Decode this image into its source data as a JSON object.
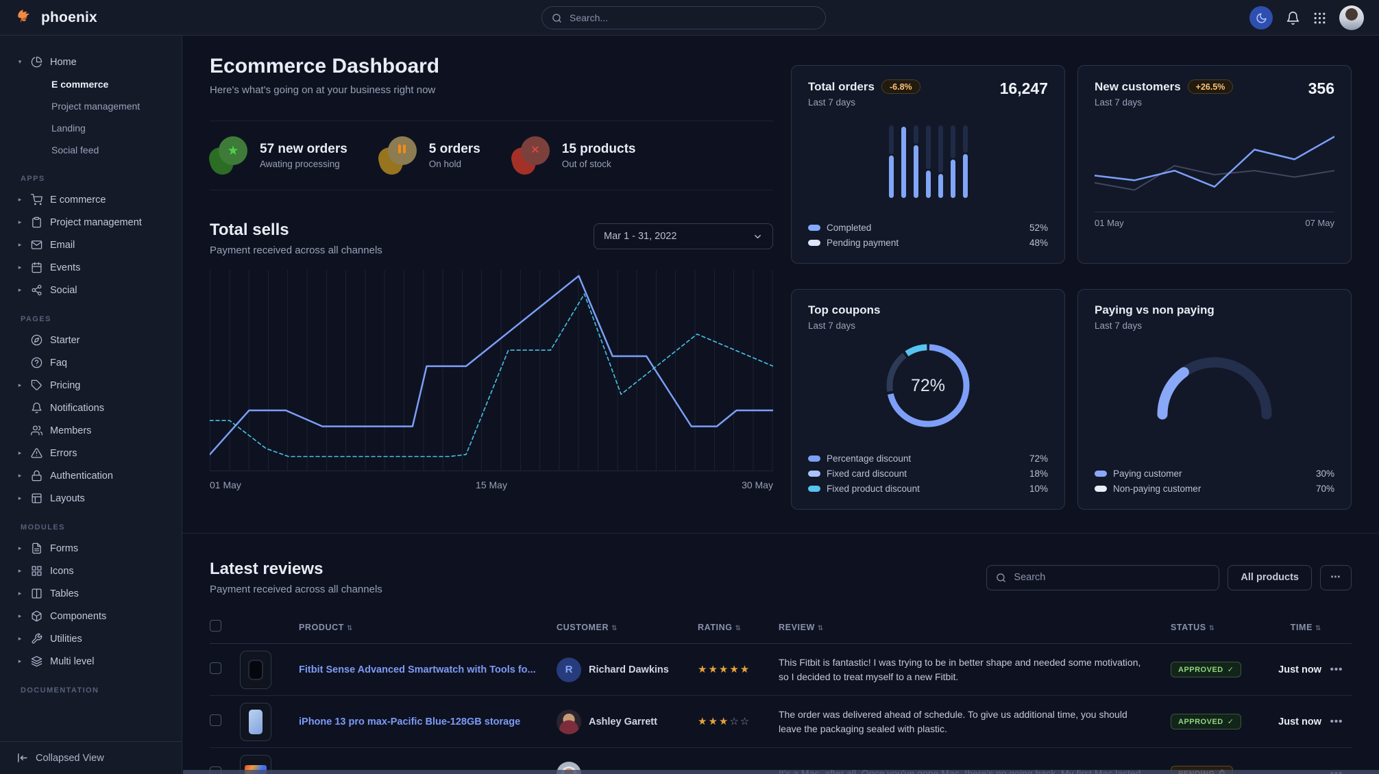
{
  "navbar": {
    "brand": "phoenix",
    "search_placeholder": "Search..."
  },
  "sidebar": {
    "sections": [
      {
        "label": "",
        "items": [
          {
            "label": "Home",
            "icon": "pie-chart",
            "caret": "down",
            "children": [
              {
                "label": "E commerce",
                "active": true
              },
              {
                "label": "Project management",
                "active": false
              },
              {
                "label": "Landing",
                "active": false
              },
              {
                "label": "Social feed",
                "active": false
              }
            ]
          }
        ]
      },
      {
        "label": "APPS",
        "items": [
          {
            "label": "E commerce",
            "icon": "cart",
            "caret": "right"
          },
          {
            "label": "Project management",
            "icon": "clipboard",
            "caret": "right"
          },
          {
            "label": "Email",
            "icon": "mail",
            "caret": "right"
          },
          {
            "label": "Events",
            "icon": "calendar",
            "caret": "right"
          },
          {
            "label": "Social",
            "icon": "share",
            "caret": "right"
          }
        ]
      },
      {
        "label": "PAGES",
        "items": [
          {
            "label": "Starter",
            "icon": "compass"
          },
          {
            "label": "Faq",
            "icon": "help-circle"
          },
          {
            "label": "Pricing",
            "icon": "tag",
            "caret": "right"
          },
          {
            "label": "Notifications",
            "icon": "bell"
          },
          {
            "label": "Members",
            "icon": "users"
          },
          {
            "label": "Errors",
            "icon": "alert-triangle",
            "caret": "right"
          },
          {
            "label": "Authentication",
            "icon": "lock",
            "caret": "right"
          },
          {
            "label": "Layouts",
            "icon": "layout",
            "caret": "right"
          }
        ]
      },
      {
        "label": "MODULES",
        "items": [
          {
            "label": "Forms",
            "icon": "file-text",
            "caret": "right"
          },
          {
            "label": "Icons",
            "icon": "grid",
            "caret": "right"
          },
          {
            "label": "Tables",
            "icon": "columns",
            "caret": "right"
          },
          {
            "label": "Components",
            "icon": "box",
            "caret": "right"
          },
          {
            "label": "Utilities",
            "icon": "tool",
            "caret": "right"
          },
          {
            "label": "Multi level",
            "icon": "layers",
            "caret": "right"
          }
        ]
      },
      {
        "label": "DOCUMENTATION",
        "items": []
      }
    ],
    "footer_label": "Collapsed View"
  },
  "header": {
    "title": "Ecommerce Dashboard",
    "subtitle": "Here's what's going on at your business right now"
  },
  "stats": [
    {
      "title": "57 new orders",
      "subtitle": "Awating processing",
      "tone": "success",
      "glyph": "star"
    },
    {
      "title": "5 orders",
      "subtitle": "On hold",
      "tone": "warning",
      "glyph": "pause"
    },
    {
      "title": "15 products",
      "subtitle": "Out of stock",
      "tone": "danger",
      "glyph": "x"
    }
  ],
  "total_sells": {
    "title": "Total sells",
    "subtitle": "Payment received across all channels",
    "select_value": "Mar 1 - 31, 2022",
    "x_labels": [
      "01 May",
      "15 May",
      "30 May"
    ]
  },
  "cards": {
    "total_orders": {
      "title": "Total orders",
      "badge": "-6.8%",
      "period": "Last 7 days",
      "value": "16,247",
      "legend": [
        {
          "label": "Completed",
          "value": "52%",
          "swatch": "#85a9ff"
        },
        {
          "label": "Pending payment",
          "value": "48%",
          "swatch": "#dde6fa"
        }
      ]
    },
    "new_customers": {
      "title": "New customers",
      "badge": "+26.5%",
      "period": "Last 7 days",
      "value": "356",
      "x_labels": [
        "01 May",
        "07 May"
      ]
    },
    "top_coupons": {
      "title": "Top coupons",
      "period": "Last 7 days",
      "center_label": "72%",
      "legend": [
        {
          "label": "Percentage discount",
          "value": "72%",
          "swatch": "#7d9ff8"
        },
        {
          "label": "Fixed card discount",
          "value": "18%",
          "swatch": "#a9c3fb"
        },
        {
          "label": "Fixed product discount",
          "value": "10%",
          "swatch": "#56c4f0"
        }
      ]
    },
    "paying": {
      "title": "Paying vs non paying",
      "period": "Last 7 days",
      "legend": [
        {
          "label": "Paying customer",
          "value": "30%",
          "swatch": "#8aa8f8"
        },
        {
          "label": "Non-paying customer",
          "value": "70%",
          "swatch": "#e8edf9"
        }
      ]
    }
  },
  "reviews": {
    "title": "Latest reviews",
    "subtitle": "Payment received across all channels",
    "search_placeholder": "Search",
    "filter_label": "All products",
    "more_label": "...",
    "headers": [
      "PRODUCT",
      "CUSTOMER",
      "RATING",
      "REVIEW",
      "STATUS",
      "TIME"
    ],
    "rows": [
      {
        "product": "Fitbit Sense Advanced Smartwatch with Tools fo...",
        "customer": "Richard Dawkins",
        "avatar": "initial",
        "avatar_initial": "R",
        "rating": 5,
        "review": "This Fitbit is fantastic! I was trying to be in better shape and needed some motivation, so I decided to treat myself to a new Fitbit.",
        "status": "APPROVED",
        "status_tone": "approved",
        "time": "Just now",
        "thumb": "watch"
      },
      {
        "product": "iPhone 13 pro max-Pacific Blue-128GB storage",
        "customer": "Ashley Garrett",
        "avatar": "photo-a",
        "avatar_initial": "",
        "rating": 3,
        "review": "The order was delivered ahead of schedule. To give us additional time, you should leave the packaging sealed with plastic.",
        "status": "APPROVED",
        "status_tone": "approved",
        "time": "Just now",
        "thumb": "phone"
      },
      {
        "product": "",
        "customer": "",
        "avatar": "photo-b",
        "avatar_initial": "",
        "rating": null,
        "review": "It's a Mac, after all. Once you've gone Mac, there's no going back. My first Mac lasted",
        "status": "PENDING",
        "status_tone": "pending",
        "time": "",
        "thumb": "laptop"
      }
    ]
  },
  "chart_data": [
    {
      "id": "total_sells",
      "type": "line",
      "title": "Total sells",
      "x_labels": [
        "01 May",
        "15 May",
        "30 May"
      ],
      "grid": "vertical",
      "series": [
        {
          "name": "current",
          "style": "solid",
          "color": "#7c9ff9",
          "width": 2.5,
          "points": [
            [
              0,
              8
            ],
            [
              7,
              30
            ],
            [
              13.5,
              30
            ],
            [
              20,
              22
            ],
            [
              36,
              22
            ],
            [
              38.5,
              52
            ],
            [
              45.5,
              52
            ],
            [
              65.5,
              97
            ],
            [
              71.5,
              57
            ],
            [
              77.5,
              57
            ],
            [
              85.5,
              22
            ],
            [
              90,
              22
            ],
            [
              93.5,
              30
            ],
            [
              100,
              30
            ]
          ]
        },
        {
          "name": "previous",
          "style": "dashed",
          "color": "#48c3e6",
          "width": 1.6,
          "points": [
            [
              0,
              25
            ],
            [
              3.5,
              25
            ],
            [
              10,
              11
            ],
            [
              14,
              7
            ],
            [
              42.5,
              7
            ],
            [
              45.5,
              8
            ],
            [
              53,
              60
            ],
            [
              60.5,
              60
            ],
            [
              66.5,
              88
            ],
            [
              73,
              38
            ],
            [
              86.5,
              68
            ],
            [
              100,
              52
            ]
          ]
        }
      ]
    },
    {
      "id": "total_orders",
      "type": "stacked-bar",
      "categories": [
        1,
        2,
        3,
        4,
        5,
        6,
        7
      ],
      "series": [
        {
          "name": "Completed",
          "color": "#81a6f7",
          "values": [
            60,
            100,
            75,
            40,
            35,
            55,
            62
          ]
        },
        {
          "name": "Pending payment",
          "color": "#1f2a47",
          "values": [
            40,
            0,
            25,
            60,
            65,
            45,
            38
          ]
        }
      ],
      "totals": {
        "Completed": 52,
        "Pending payment": 48
      }
    },
    {
      "id": "new_customers",
      "type": "line",
      "x_labels": [
        "01 May",
        "07 May"
      ],
      "series": [
        {
          "name": "previous",
          "style": "solid",
          "color": "#3f475f",
          "width": 2,
          "points_y": [
            29,
            20,
            50,
            39,
            44,
            36,
            44
          ]
        },
        {
          "name": "current",
          "style": "solid",
          "color": "#7c9ff9",
          "width": 2.5,
          "points_y": [
            38,
            32,
            44,
            24,
            70,
            58,
            86
          ]
        }
      ]
    },
    {
      "id": "top_coupons",
      "type": "donut",
      "center_label": "72%",
      "slices": [
        {
          "label": "Percentage discount",
          "value": 72,
          "color": "#7d9ff8"
        },
        {
          "label": "Fixed card discount",
          "value": 18,
          "color": "#2d3a58"
        },
        {
          "label": "Fixed product discount",
          "value": 10,
          "color": "#56c4f0"
        }
      ]
    },
    {
      "id": "paying_gauge",
      "type": "half-gauge",
      "slices": [
        {
          "label": "Paying customer",
          "value": 30,
          "color": "#8aa8f8"
        },
        {
          "label": "Non-paying customer",
          "value": 70,
          "color": "#232f4c"
        }
      ]
    }
  ]
}
